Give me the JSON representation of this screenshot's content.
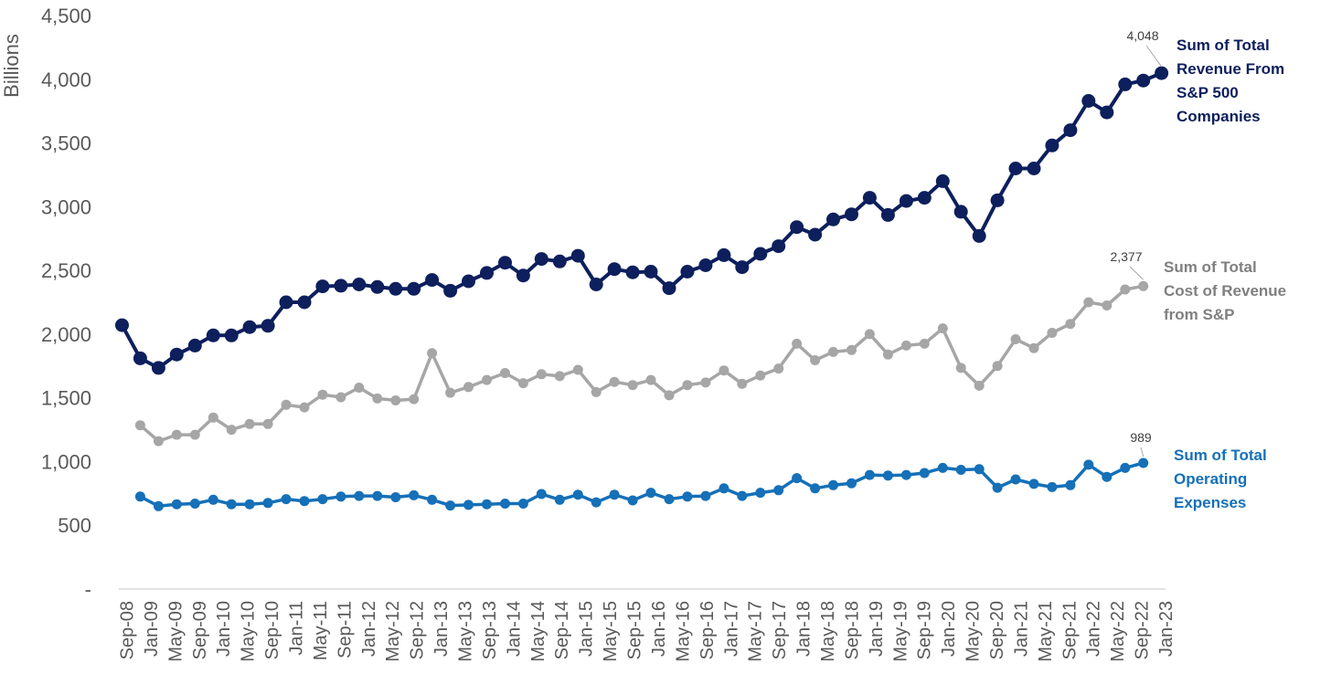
{
  "chart_data": {
    "type": "line",
    "ylabel": "Billions",
    "xlabel": "",
    "ylim": [
      0,
      4500
    ],
    "y_ticks": [
      {
        "value": 0,
        "label": "-"
      },
      {
        "value": 500,
        "label": "500"
      },
      {
        "value": 1000,
        "label": "1,000"
      },
      {
        "value": 1500,
        "label": "1,500"
      },
      {
        "value": 2000,
        "label": "2,000"
      },
      {
        "value": 2500,
        "label": "2,500"
      },
      {
        "value": 3000,
        "label": "3,000"
      },
      {
        "value": 3500,
        "label": "3,500"
      },
      {
        "value": 4000,
        "label": "4,000"
      },
      {
        "value": 4500,
        "label": "4,500"
      }
    ],
    "grid": false,
    "legend": "inline-right",
    "x": [
      "Sep-08",
      "Dec-08",
      "Mar-09",
      "Jun-09",
      "Sep-09",
      "Dec-09",
      "Mar-10",
      "Jun-10",
      "Sep-10",
      "Dec-10",
      "Mar-11",
      "Jun-11",
      "Sep-11",
      "Dec-11",
      "Mar-12",
      "Jun-12",
      "Sep-12",
      "Dec-12",
      "Mar-13",
      "Jun-13",
      "Sep-13",
      "Dec-13",
      "Mar-14",
      "Jun-14",
      "Sep-14",
      "Dec-14",
      "Mar-15",
      "Jun-15",
      "Sep-15",
      "Dec-15",
      "Mar-16",
      "Jun-16",
      "Sep-16",
      "Dec-16",
      "Mar-17",
      "Jun-17",
      "Sep-17",
      "Dec-17",
      "Mar-18",
      "Jun-18",
      "Sep-18",
      "Dec-18",
      "Mar-19",
      "Jun-19",
      "Sep-19",
      "Dec-19",
      "Mar-20",
      "Jun-20",
      "Sep-20",
      "Dec-20",
      "Mar-21",
      "Jun-21",
      "Sep-21",
      "Dec-21",
      "Mar-22",
      "Jun-22",
      "Sep-22",
      "Dec-22"
    ],
    "x_tick_labels": [
      "Sep-08",
      "Jan-09",
      "May-09",
      "Sep-09",
      "Jan-10",
      "May-10",
      "Sep-10",
      "Jan-11",
      "May-11",
      "Sep-11",
      "Jan-12",
      "May-12",
      "Sep-12",
      "Jan-13",
      "May-13",
      "Sep-13",
      "Jan-14",
      "May-14",
      "Sep-14",
      "Jan-15",
      "May-15",
      "Sep-15",
      "Jan-16",
      "May-16",
      "Sep-16",
      "Jan-17",
      "May-17",
      "Sep-17",
      "Jan-18",
      "May-18",
      "Sep-18",
      "Jan-19",
      "May-19",
      "Sep-19",
      "Jan-20",
      "May-20",
      "Sep-20",
      "Jan-21",
      "May-21",
      "Sep-21",
      "Jan-22",
      "May-22",
      "Sep-22",
      "Jan-23"
    ],
    "series": [
      {
        "name": "Sum of Total Revenue From S&P 500 Companies",
        "color": "#0d1f5c",
        "end_label": "4,048",
        "label_lines": [
          "Sum of Total",
          "Revenue From",
          "S&P 500",
          "Companies"
        ],
        "values": [
          2070,
          1810,
          1735,
          1840,
          1910,
          1990,
          1990,
          2055,
          2065,
          2250,
          2250,
          2375,
          2380,
          2390,
          2370,
          2355,
          2355,
          2425,
          2340,
          2415,
          2480,
          2560,
          2460,
          2590,
          2570,
          2615,
          2390,
          2510,
          2485,
          2490,
          2360,
          2490,
          2540,
          2620,
          2525,
          2630,
          2690,
          2840,
          2780,
          2900,
          2940,
          3070,
          2935,
          3045,
          3070,
          3200,
          2960,
          2770,
          3050,
          3300,
          3300,
          3480,
          3600,
          3830,
          3740,
          3960,
          3990,
          4048
        ]
      },
      {
        "name": "Sum of Total Cost of Revenue from S&P",
        "color": "#a6a6a6",
        "label_color": "#7f7f7f",
        "end_label": "2,377",
        "label_lines": [
          "Sum of Total",
          "Cost of Revenue",
          "from S&P"
        ],
        "values": [
          null,
          1285,
          1160,
          1210,
          1210,
          1345,
          1250,
          1295,
          1295,
          1445,
          1425,
          1525,
          1505,
          1580,
          1495,
          1480,
          1490,
          1850,
          1540,
          1585,
          1640,
          1695,
          1615,
          1685,
          1670,
          1720,
          1545,
          1625,
          1600,
          1640,
          1520,
          1600,
          1620,
          1715,
          1610,
          1675,
          1730,
          1925,
          1795,
          1860,
          1875,
          2000,
          1840,
          1910,
          1925,
          2045,
          1735,
          1595,
          1750,
          1960,
          1890,
          2010,
          2080,
          2250,
          2225,
          2350,
          2377,
          null
        ]
      },
      {
        "name": "Sum of Total Operating Expenses",
        "color": "#1570b8",
        "label_color": "#1570b8",
        "end_label": "989",
        "label_lines": [
          "Sum of Total",
          "Operating",
          "Expenses"
        ],
        "values": [
          null,
          725,
          650,
          665,
          670,
          700,
          665,
          665,
          675,
          705,
          690,
          705,
          725,
          730,
          730,
          720,
          735,
          700,
          655,
          660,
          665,
          670,
          670,
          745,
          700,
          740,
          680,
          740,
          695,
          755,
          705,
          725,
          730,
          790,
          730,
          755,
          775,
          870,
          790,
          815,
          830,
          895,
          890,
          895,
          910,
          950,
          935,
          940,
          795,
          860,
          825,
          800,
          815,
          975,
          880,
          950,
          989,
          null
        ]
      }
    ]
  }
}
